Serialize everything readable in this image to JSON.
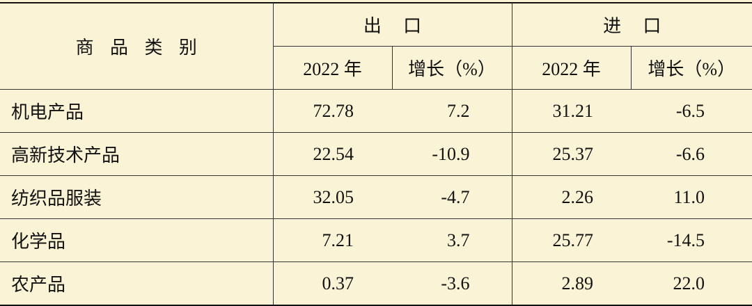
{
  "table": {
    "header": {
      "category": "商品类别",
      "export": "出口",
      "import": "进口",
      "sub": [
        "2022 年",
        "增长（%）",
        "2022 年",
        "增长（%）"
      ]
    },
    "rows": [
      [
        "机电产品",
        "72.78",
        "7.2",
        "31.21",
        "-6.5"
      ],
      [
        "高新技术产品",
        "22.54",
        "-10.9",
        "25.37",
        "-6.6"
      ],
      [
        "纺织品服装",
        "32.05",
        "-4.7",
        "2.26",
        "11.0"
      ],
      [
        "化学品",
        "7.21",
        "3.7",
        "25.77",
        "-14.5"
      ],
      [
        "农产品",
        "0.37",
        "-3.6",
        "2.89",
        "22.0"
      ]
    ]
  }
}
